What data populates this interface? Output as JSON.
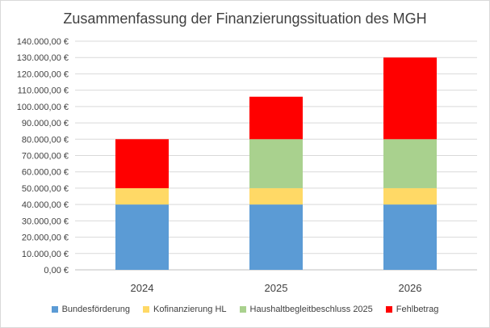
{
  "chart_data": {
    "type": "bar",
    "stacked": true,
    "title": "Zusammenfassung der Finanzierungssituation des MGH",
    "categories": [
      "2024",
      "2025",
      "2026"
    ],
    "ylim": [
      0,
      140000
    ],
    "ytick_step": 10000,
    "ytick_labels": [
      "0,00 €",
      "10.000,00 €",
      "20.000,00 €",
      "30.000,00 €",
      "40.000,00 €",
      "50.000,00 €",
      "60.000,00 €",
      "70.000,00 €",
      "80.000,00 €",
      "90.000,00 €",
      "100.000,00 €",
      "110.000,00 €",
      "120.000,00 €",
      "130.000,00 €",
      "140.000,00 €"
    ],
    "grid": true,
    "legend_position": "bottom",
    "series": [
      {
        "name": "Bundesförderung",
        "color": "#5B9BD5",
        "values": [
          40000,
          40000,
          40000
        ]
      },
      {
        "name": "Kofinanzierung HL",
        "color": "#FFD966",
        "values": [
          10000,
          10000,
          10000
        ]
      },
      {
        "name": "Haushaltbegleitbeschluss 2025",
        "color": "#A9D18E",
        "values": [
          0,
          30000,
          30000
        ]
      },
      {
        "name": "Fehlbetrag",
        "color": "#FF0000",
        "values": [
          30000,
          26000,
          50000
        ]
      }
    ]
  }
}
